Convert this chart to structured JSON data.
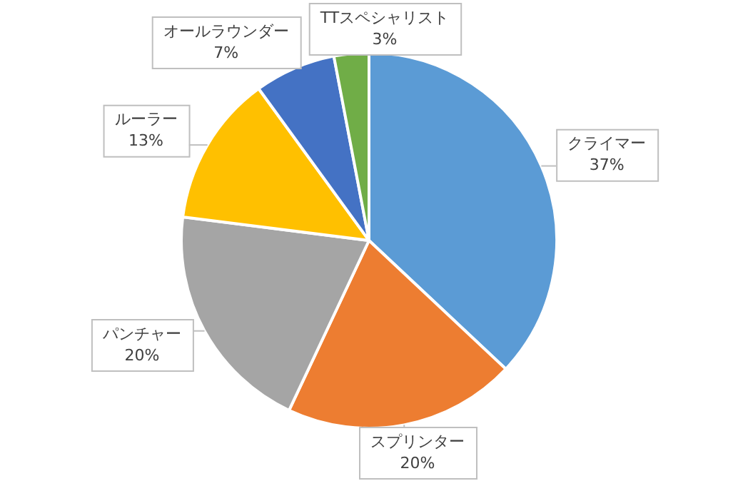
{
  "chart_data": {
    "type": "pie",
    "categories": [
      "クライマー",
      "スプリンター",
      "パンチャー",
      "ルーラー",
      "オールラウンダー",
      "TTスペシャリスト"
    ],
    "values": [
      37,
      20,
      20,
      13,
      7,
      3
    ],
    "colors": [
      "#5b9bd5",
      "#ed7d31",
      "#a5a5a5",
      "#ffc000",
      "#4472c4",
      "#70ad47"
    ],
    "value_labels": [
      "37%",
      "20%",
      "20%",
      "13%",
      "7%",
      "3%"
    ],
    "legend": false
  }
}
